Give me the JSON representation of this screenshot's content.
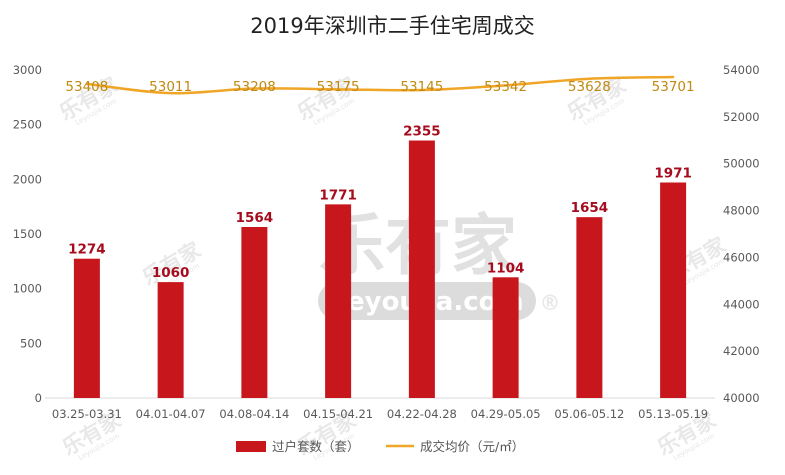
{
  "chart_data": {
    "type": "bar",
    "title": "2019年深圳市二手住宅周成交",
    "categories": [
      "03.25-03.31",
      "04.01-04.07",
      "04.08-04.14",
      "04.15-04.21",
      "04.22-04.28",
      "04.29-05.05",
      "05.06-05.12",
      "05.13-05.19"
    ],
    "series": [
      {
        "name": "过户套数（套）",
        "type": "bar",
        "axis": "left",
        "color": "#c8161d",
        "values": [
          1274,
          1060,
          1564,
          1771,
          2355,
          1104,
          1654,
          1971
        ]
      },
      {
        "name": "成交均价（元/㎡）",
        "type": "line",
        "axis": "right",
        "color": "#f0a526",
        "values": [
          53408,
          53011,
          53208,
          53175,
          53145,
          53342,
          53628,
          53701
        ]
      }
    ],
    "y_left": {
      "min": 0,
      "max": 3000,
      "step": 500
    },
    "y_right": {
      "min": 40000,
      "max": 54000,
      "step": 2000
    },
    "legend_position": "bottom",
    "grid": false
  },
  "watermark": {
    "brand": "乐有家",
    "site": "Leyoujia.com",
    "mark": "®",
    "small_site": "Leyoujia.com"
  }
}
